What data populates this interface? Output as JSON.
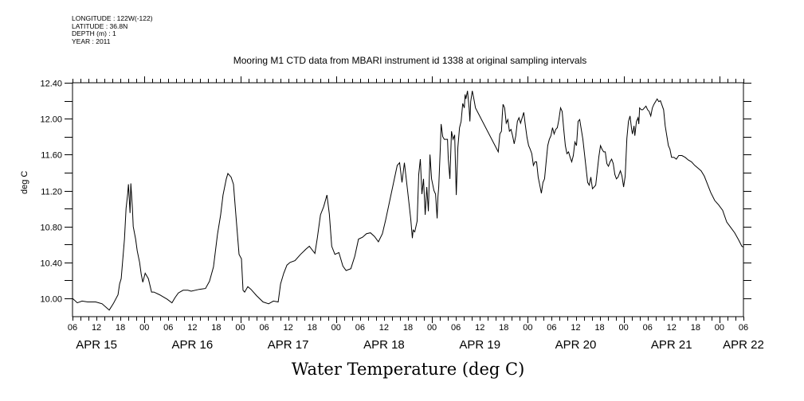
{
  "chart_data": {
    "type": "line",
    "title": "Mooring M1 CTD data from MBARI instrument id 1338 at original sampling intervals",
    "xlabel": "Water Temperature (deg C)",
    "ylabel": "deg C",
    "header_lines": [
      "LONGITUDE : 122W(-122)",
      "LATITUDE : 36.8N",
      "DEPTH (m) : 1",
      "YEAR : 2011"
    ],
    "x_units": "hours since APR 15 06:00",
    "xlim": [
      0,
      168
    ],
    "ylim": [
      9.8,
      12.4
    ],
    "y_ticks": [
      10.0,
      10.4,
      10.8,
      11.2,
      11.6,
      12.0,
      12.4
    ],
    "y_tick_labels": [
      "10.00",
      "10.40",
      "10.80",
      "11.20",
      "11.60",
      "12.00",
      "12.40"
    ],
    "x_hour_labels": [
      "06",
      "12",
      "18",
      "00",
      "06",
      "12",
      "18",
      "00",
      "06",
      "12",
      "18",
      "00",
      "06",
      "12",
      "18",
      "00",
      "06",
      "12",
      "18",
      "00",
      "06",
      "12",
      "18",
      "00",
      "06",
      "12",
      "18",
      "00",
      "06"
    ],
    "x_day_labels": [
      {
        "label": "APR 15",
        "hour": 6
      },
      {
        "label": "APR 16",
        "hour": 30
      },
      {
        "label": "APR 17",
        "hour": 54
      },
      {
        "label": "APR 18",
        "hour": 78
      },
      {
        "label": "APR 19",
        "hour": 102
      },
      {
        "label": "APR 20",
        "hour": 126
      },
      {
        "label": "APR 21",
        "hour": 150
      },
      {
        "label": "APR 22",
        "hour": 168
      }
    ],
    "grid": false,
    "series": [
      {
        "name": "Water Temperature",
        "points": [
          [
            0.0,
            10.0
          ],
          [
            1.2,
            9.95
          ],
          [
            2.4,
            9.97
          ],
          [
            3.8,
            9.96
          ],
          [
            5.8,
            9.96
          ],
          [
            7.4,
            9.94
          ],
          [
            9.2,
            9.87
          ],
          [
            10.2,
            9.94
          ],
          [
            11.4,
            10.04
          ],
          [
            11.8,
            10.16
          ],
          [
            12.2,
            10.22
          ],
          [
            13.0,
            10.66
          ],
          [
            13.4,
            11.0
          ],
          [
            13.8,
            11.16
          ],
          [
            14.0,
            11.27
          ],
          [
            14.4,
            10.95
          ],
          [
            14.6,
            11.28
          ],
          [
            15.0,
            11.0
          ],
          [
            15.2,
            10.8
          ],
          [
            15.8,
            10.66
          ],
          [
            16.2,
            10.53
          ],
          [
            16.8,
            10.4
          ],
          [
            17.2,
            10.27
          ],
          [
            17.6,
            10.18
          ],
          [
            18.2,
            10.28
          ],
          [
            19.0,
            10.22
          ],
          [
            19.8,
            10.07
          ],
          [
            20.4,
            10.07
          ],
          [
            21.8,
            10.04
          ],
          [
            23.7,
            9.99
          ],
          [
            24.9,
            9.95
          ],
          [
            25.7,
            10.01
          ],
          [
            26.5,
            10.06
          ],
          [
            27.7,
            10.09
          ],
          [
            28.9,
            10.09
          ],
          [
            29.7,
            10.08
          ],
          [
            31.7,
            10.1
          ],
          [
            33.3,
            10.11
          ],
          [
            34.3,
            10.19
          ],
          [
            35.3,
            10.35
          ],
          [
            36.3,
            10.71
          ],
          [
            37.1,
            10.93
          ],
          [
            37.7,
            11.15
          ],
          [
            38.5,
            11.33
          ],
          [
            38.9,
            11.39
          ],
          [
            39.7,
            11.35
          ],
          [
            40.3,
            11.27
          ],
          [
            40.9,
            10.93
          ],
          [
            41.7,
            10.49
          ],
          [
            42.3,
            10.44
          ],
          [
            42.7,
            10.09
          ],
          [
            43.1,
            10.07
          ],
          [
            43.9,
            10.13
          ],
          [
            44.7,
            10.1
          ],
          [
            46.1,
            10.03
          ],
          [
            47.7,
            9.96
          ],
          [
            49.1,
            9.94
          ],
          [
            50.3,
            9.97
          ],
          [
            51.5,
            9.96
          ],
          [
            52.1,
            10.16
          ],
          [
            52.9,
            10.28
          ],
          [
            53.7,
            10.37
          ],
          [
            54.5,
            10.4
          ],
          [
            55.7,
            10.42
          ],
          [
            57.1,
            10.49
          ],
          [
            58.5,
            10.55
          ],
          [
            59.3,
            10.58
          ],
          [
            60.7,
            10.5
          ],
          [
            61.3,
            10.67
          ],
          [
            62.1,
            10.93
          ],
          [
            62.9,
            11.02
          ],
          [
            63.7,
            11.15
          ],
          [
            64.3,
            10.94
          ],
          [
            64.9,
            10.58
          ],
          [
            65.7,
            10.49
          ],
          [
            66.7,
            10.51
          ],
          [
            67.7,
            10.36
          ],
          [
            68.5,
            10.31
          ],
          [
            69.7,
            10.33
          ],
          [
            70.7,
            10.47
          ],
          [
            71.6,
            10.66
          ],
          [
            72.6,
            10.68
          ],
          [
            73.6,
            10.72
          ],
          [
            74.6,
            10.73
          ],
          [
            75.6,
            10.69
          ],
          [
            76.6,
            10.63
          ],
          [
            77.6,
            10.72
          ],
          [
            78.4,
            10.87
          ],
          [
            81.3,
            11.48
          ],
          [
            81.9,
            11.51
          ],
          [
            82.5,
            11.29
          ],
          [
            83.1,
            11.51
          ],
          [
            83.9,
            11.2
          ],
          [
            84.7,
            10.88
          ],
          [
            85.1,
            10.67
          ],
          [
            85.3,
            10.76
          ],
          [
            85.7,
            10.74
          ],
          [
            86.3,
            10.86
          ],
          [
            86.7,
            11.38
          ],
          [
            87.1,
            11.55
          ],
          [
            87.5,
            11.16
          ],
          [
            87.9,
            11.33
          ],
          [
            88.3,
            10.93
          ],
          [
            88.7,
            11.24
          ],
          [
            89.1,
            10.97
          ],
          [
            89.5,
            11.6
          ],
          [
            89.9,
            11.33
          ],
          [
            90.5,
            11.2
          ],
          [
            90.9,
            11.16
          ],
          [
            91.3,
            10.89
          ],
          [
            91.5,
            11.13
          ],
          [
            91.7,
            11.24
          ],
          [
            92.1,
            11.68
          ],
          [
            92.3,
            11.94
          ],
          [
            92.7,
            11.8
          ],
          [
            93.1,
            11.77
          ],
          [
            93.9,
            11.77
          ],
          [
            94.1,
            11.55
          ],
          [
            94.5,
            11.33
          ],
          [
            94.9,
            11.86
          ],
          [
            95.3,
            11.77
          ],
          [
            95.7,
            11.82
          ],
          [
            96.1,
            11.15
          ],
          [
            96.5,
            11.68
          ],
          [
            96.9,
            11.9
          ],
          [
            97.3,
            11.97
          ],
          [
            97.7,
            12.17
          ],
          [
            98.1,
            12.12
          ],
          [
            98.3,
            12.27
          ],
          [
            98.5,
            12.22
          ],
          [
            98.9,
            12.31
          ],
          [
            99.3,
            12.12
          ],
          [
            99.5,
            11.97
          ],
          [
            99.7,
            12.19
          ],
          [
            100.1,
            12.31
          ],
          [
            100.5,
            12.22
          ],
          [
            100.9,
            12.12
          ],
          [
            106.6,
            11.63
          ],
          [
            107.0,
            11.83
          ],
          [
            107.4,
            11.86
          ],
          [
            107.6,
            12.03
          ],
          [
            107.8,
            12.16
          ],
          [
            108.2,
            12.12
          ],
          [
            108.6,
            11.95
          ],
          [
            109.0,
            11.99
          ],
          [
            109.4,
            11.86
          ],
          [
            109.8,
            11.88
          ],
          [
            110.2,
            11.81
          ],
          [
            110.6,
            11.72
          ],
          [
            111.0,
            11.81
          ],
          [
            111.4,
            11.97
          ],
          [
            111.8,
            12.01
          ],
          [
            112.2,
            11.95
          ],
          [
            112.6,
            12.01
          ],
          [
            113.0,
            12.07
          ],
          [
            113.4,
            11.92
          ],
          [
            113.8,
            11.79
          ],
          [
            114.2,
            11.7
          ],
          [
            114.6,
            11.66
          ],
          [
            115.0,
            11.61
          ],
          [
            115.4,
            11.48
          ],
          [
            115.8,
            11.52
          ],
          [
            116.2,
            11.52
          ],
          [
            116.6,
            11.35
          ],
          [
            117.0,
            11.26
          ],
          [
            117.4,
            11.17
          ],
          [
            117.8,
            11.29
          ],
          [
            118.2,
            11.33
          ],
          [
            118.6,
            11.52
          ],
          [
            119.0,
            11.7
          ],
          [
            119.4,
            11.77
          ],
          [
            119.8,
            11.81
          ],
          [
            120.2,
            11.9
          ],
          [
            120.6,
            11.83
          ],
          [
            121.0,
            11.88
          ],
          [
            121.4,
            11.9
          ],
          [
            121.8,
            11.99
          ],
          [
            122.2,
            12.12
          ],
          [
            122.6,
            12.08
          ],
          [
            123.0,
            11.88
          ],
          [
            123.4,
            11.7
          ],
          [
            123.8,
            11.61
          ],
          [
            124.2,
            11.63
          ],
          [
            124.6,
            11.57
          ],
          [
            125.0,
            11.52
          ],
          [
            125.4,
            11.59
          ],
          [
            125.8,
            11.74
          ],
          [
            126.2,
            11.7
          ],
          [
            126.6,
            11.97
          ],
          [
            127.0,
            11.99
          ],
          [
            127.4,
            11.88
          ],
          [
            127.8,
            11.77
          ],
          [
            128.2,
            11.61
          ],
          [
            128.6,
            11.45
          ],
          [
            129.0,
            11.29
          ],
          [
            129.4,
            11.26
          ],
          [
            129.8,
            11.35
          ],
          [
            130.2,
            11.22
          ],
          [
            130.6,
            11.24
          ],
          [
            131.0,
            11.26
          ],
          [
            131.4,
            11.42
          ],
          [
            131.8,
            11.58
          ],
          [
            132.2,
            11.7
          ],
          [
            132.6,
            11.66
          ],
          [
            133.0,
            11.63
          ],
          [
            133.4,
            11.63
          ],
          [
            133.8,
            11.5
          ],
          [
            134.2,
            11.47
          ],
          [
            134.6,
            11.52
          ],
          [
            135.0,
            11.55
          ],
          [
            135.4,
            11.5
          ],
          [
            135.8,
            11.38
          ],
          [
            136.2,
            11.33
          ],
          [
            136.6,
            11.35
          ],
          [
            137.2,
            11.42
          ],
          [
            137.6,
            11.36
          ],
          [
            138.0,
            11.24
          ],
          [
            138.4,
            11.36
          ],
          [
            138.8,
            11.78
          ],
          [
            139.2,
            11.97
          ],
          [
            139.6,
            12.03
          ],
          [
            140.0,
            11.88
          ],
          [
            140.2,
            11.83
          ],
          [
            140.6,
            11.92
          ],
          [
            140.8,
            11.81
          ],
          [
            141.2,
            11.97
          ],
          [
            141.6,
            12.01
          ],
          [
            141.8,
            11.94
          ],
          [
            142.0,
            12.12
          ],
          [
            142.4,
            12.1
          ],
          [
            142.8,
            12.1
          ],
          [
            143.2,
            12.12
          ],
          [
            143.6,
            12.14
          ],
          [
            144.0,
            12.1
          ],
          [
            144.4,
            12.08
          ],
          [
            144.8,
            12.03
          ],
          [
            145.2,
            12.12
          ],
          [
            145.6,
            12.16
          ],
          [
            146.0,
            12.19
          ],
          [
            146.4,
            12.22
          ],
          [
            146.8,
            12.19
          ],
          [
            147.2,
            12.2
          ],
          [
            147.6,
            12.15
          ],
          [
            148.0,
            12.1
          ],
          [
            148.4,
            11.92
          ],
          [
            148.8,
            11.81
          ],
          [
            149.2,
            11.7
          ],
          [
            149.6,
            11.66
          ],
          [
            150.0,
            11.57
          ],
          [
            150.6,
            11.57
          ],
          [
            151.2,
            11.55
          ],
          [
            151.8,
            11.59
          ],
          [
            152.6,
            11.59
          ],
          [
            153.4,
            11.57
          ],
          [
            154.2,
            11.54
          ],
          [
            155.0,
            11.52
          ],
          [
            155.8,
            11.48
          ],
          [
            156.6,
            11.45
          ],
          [
            157.4,
            11.42
          ],
          [
            158.2,
            11.36
          ],
          [
            159.0,
            11.27
          ],
          [
            159.8,
            11.18
          ],
          [
            160.8,
            11.09
          ],
          [
            161.8,
            11.04
          ],
          [
            162.8,
            10.98
          ],
          [
            163.8,
            10.85
          ],
          [
            164.8,
            10.79
          ],
          [
            165.8,
            10.73
          ],
          [
            166.8,
            10.65
          ],
          [
            167.6,
            10.58
          ],
          [
            168.0,
            10.57
          ]
        ]
      }
    ]
  }
}
